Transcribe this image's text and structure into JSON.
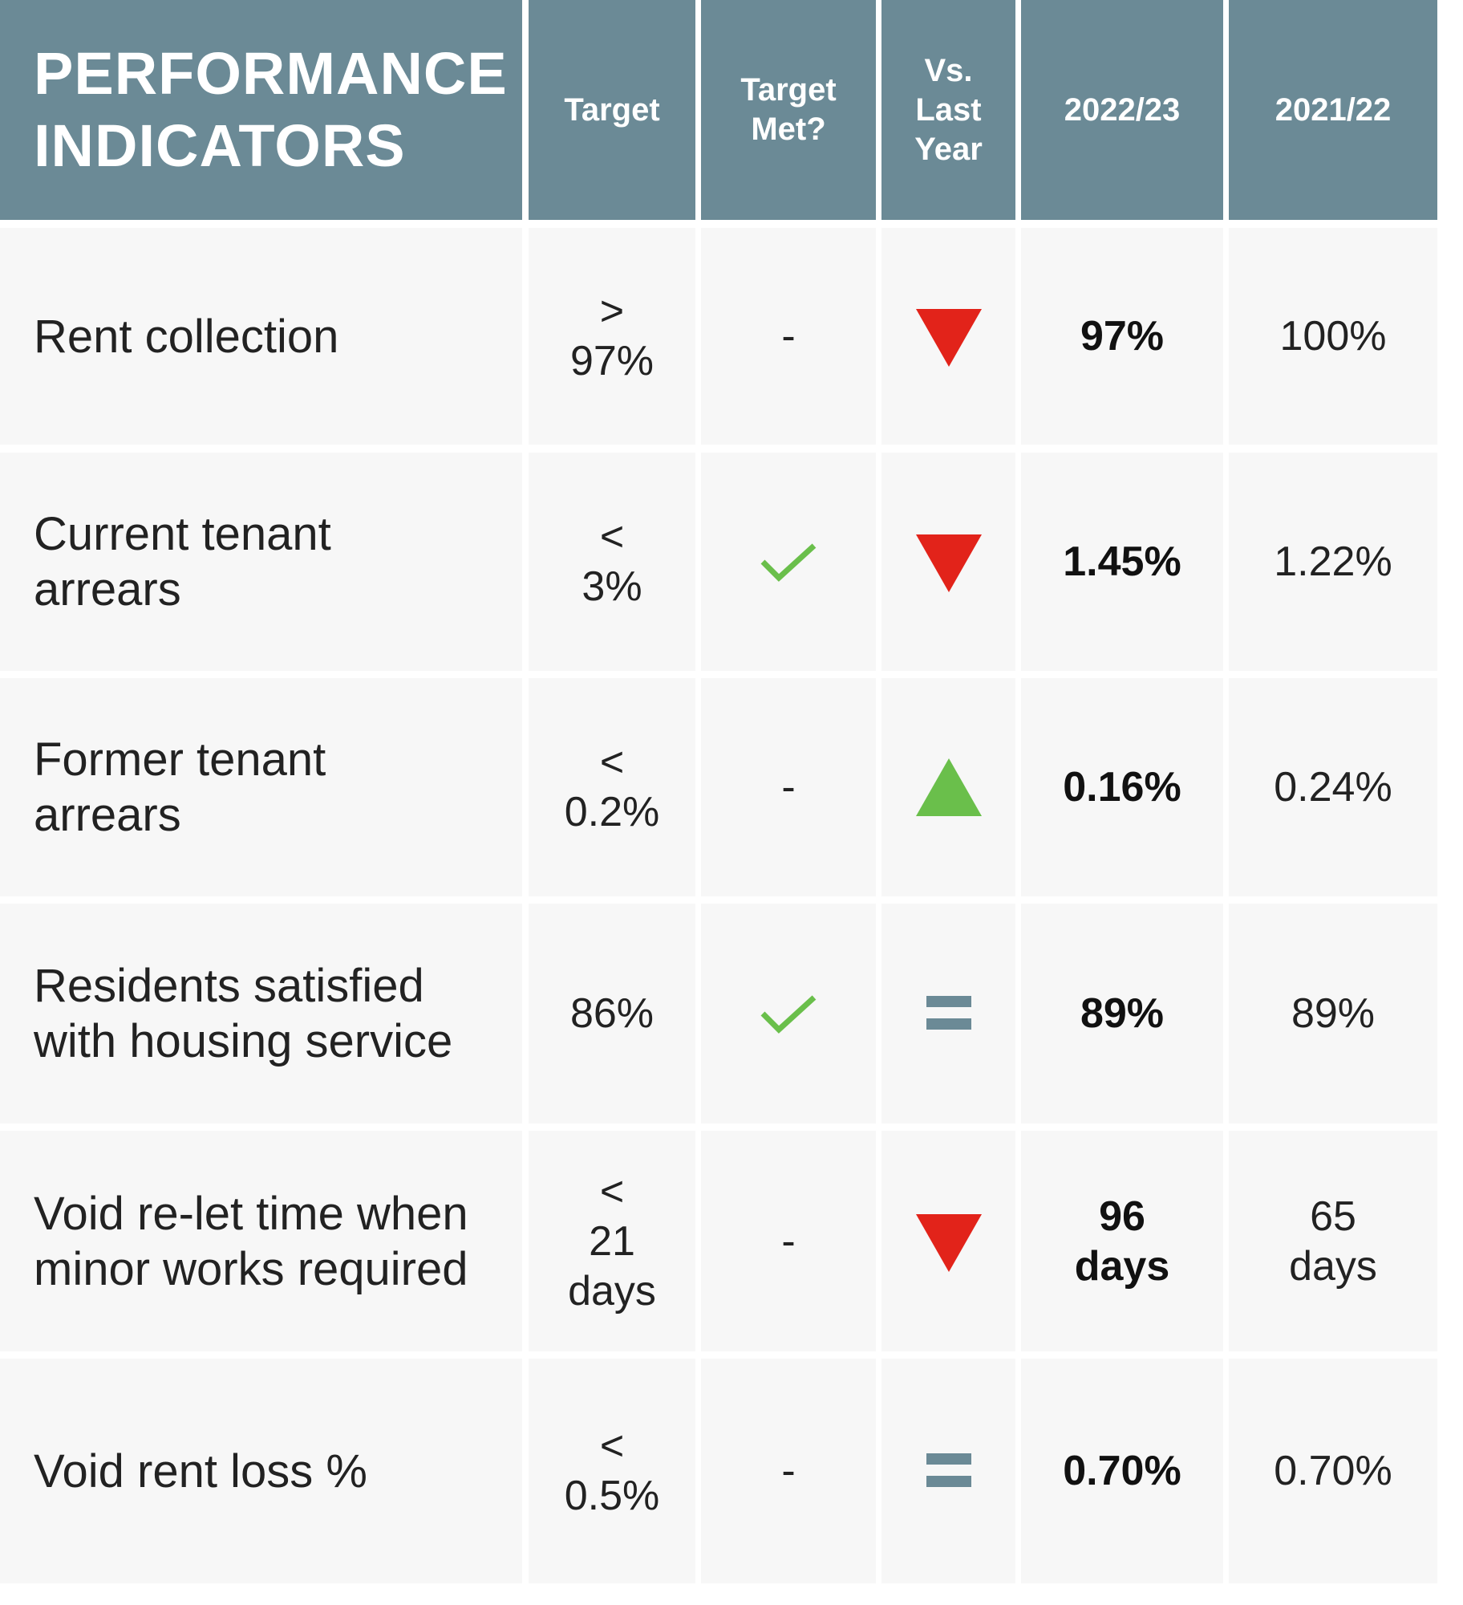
{
  "header": {
    "title": "PERFORMANCE\nINDICATORS",
    "columns": [
      "Target",
      "Target\nMet?",
      "Vs.\nLast\nYear",
      "2022/23",
      "2021/22"
    ]
  },
  "colors": {
    "header_bg": "#6b8a96",
    "row_bg": "#f7f7f7",
    "arrow_down": "#e2231a",
    "arrow_up": "#6abf4b",
    "check": "#6abf4b",
    "equal": "#6b8a96"
  },
  "rows": [
    {
      "indicator": "Rent collection",
      "target": ">\n97%",
      "target_met": "-",
      "vs_last_year": "down-arrow-icon",
      "current": "97%",
      "previous": "100%"
    },
    {
      "indicator": "Current tenant\narrears",
      "target": "<\n3%",
      "target_met": "check-icon",
      "vs_last_year": "down-arrow-icon",
      "current": "1.45%",
      "previous": "1.22%"
    },
    {
      "indicator": "Former tenant\narrears",
      "target": "<\n0.2%",
      "target_met": "-",
      "vs_last_year": "up-arrow-icon",
      "current": "0.16%",
      "previous": "0.24%"
    },
    {
      "indicator": "Residents satisfied\nwith housing service",
      "target": "86%",
      "target_met": "check-icon",
      "vs_last_year": "equal-icon",
      "current": "89%",
      "previous": "89%"
    },
    {
      "indicator": "Void re-let time when\nminor works required",
      "target": "<\n21\ndays",
      "target_met": "-",
      "vs_last_year": "down-arrow-icon",
      "current": "96\ndays",
      "previous": "65\ndays"
    },
    {
      "indicator": "Void rent loss %",
      "target": "<\n0.5%",
      "target_met": "-",
      "vs_last_year": "equal-icon",
      "current": "0.70%",
      "previous": "0.70%"
    }
  ]
}
